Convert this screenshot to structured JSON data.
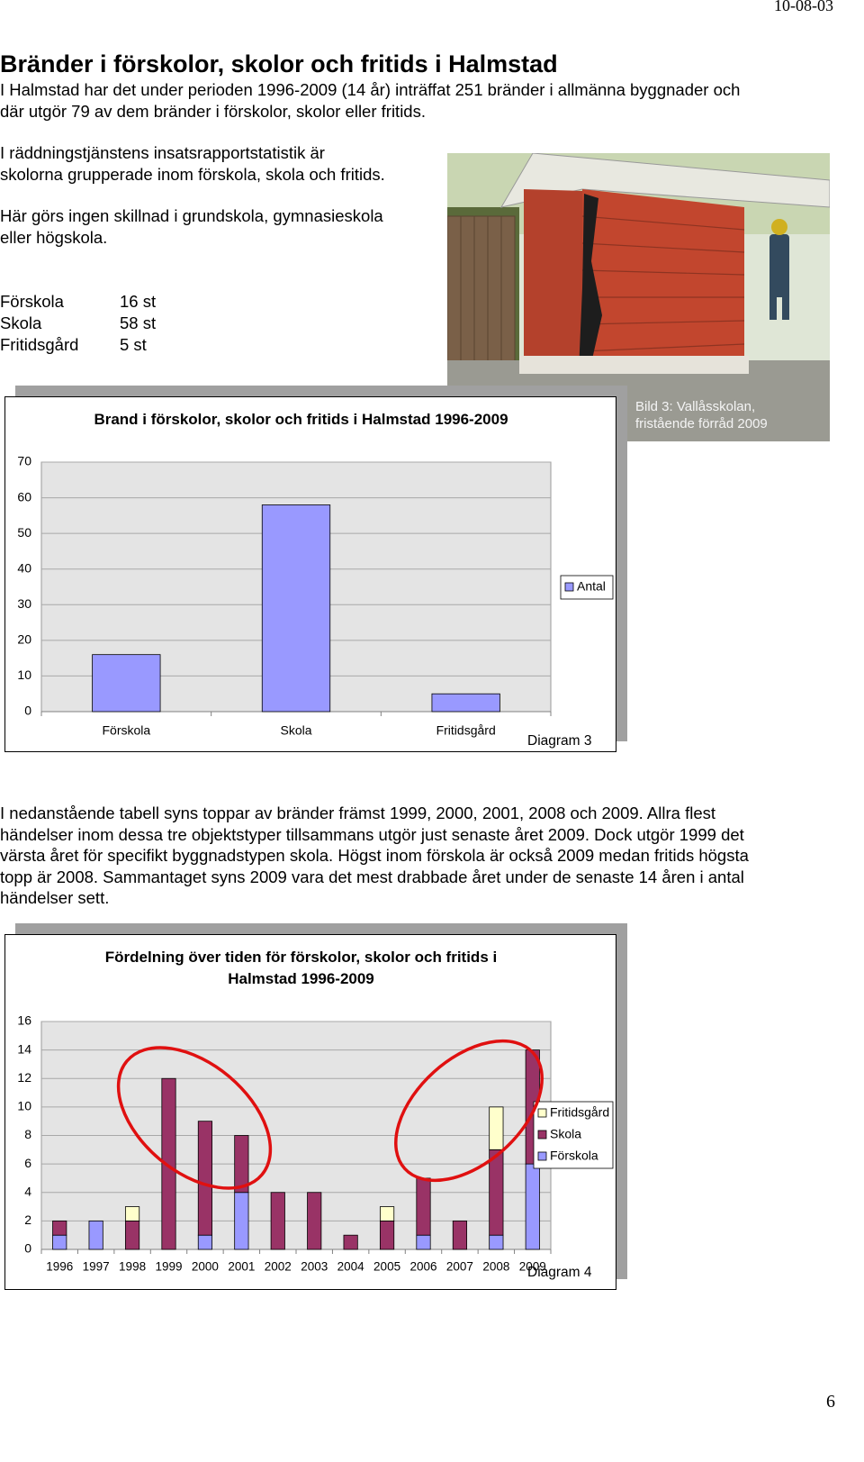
{
  "header": {
    "date": "10-08-03"
  },
  "document": {
    "title": "Bränder i förskolor, skolor och fritids i Halmstad",
    "paragraphs": [
      [
        "I Halmstad har det under perioden 1996-2009 (14 år) inträffat 251 bränder i allmänna byggnader och",
        "där utgör 79 av dem bränder i förskolor, skolor eller fritids."
      ],
      [
        "I räddningstjänstens insatsrapportstatistik är",
        "skolorna grupperade inom förskola, skola och fritids."
      ],
      [
        "Här görs ingen skillnad i grundskola, gymnasieskola",
        "eller högskola."
      ]
    ],
    "stats": [
      {
        "label": "Förskola",
        "value": "16 st"
      },
      {
        "label": "Skola",
        "value": "58 st"
      },
      {
        "label": "Fritidsgård",
        "value": "5 st"
      }
    ],
    "image_caption": "Bild 3: Vallåsskolan, fristående förråd 2009",
    "paragraph_after": [
      "I nedanstående tabell syns toppar av bränder främst 1999, 2000, 2001, 2008 och 2009. Allra flest",
      "händelser inom dessa tre objektstyper tillsammans utgör just senaste året 2009. Dock utgör 1999 det",
      "värsta året för specifikt byggnadstypen skola. Högst inom förskola är också 2009 medan fritids högsta",
      "topp är 2008. Sammantaget syns 2009 vara det mest drabbade året under de senaste 14 åren i antal",
      "händelser sett."
    ]
  },
  "chart_data": [
    {
      "type": "bar",
      "title": "Brand i förskolor, skolor och fritids i Halmstad 1996-2009",
      "categories": [
        "Förskola",
        "Skola",
        "Fritidsgård"
      ],
      "series": [
        {
          "name": "Antal",
          "color": "#9999ff",
          "values": [
            16,
            58,
            5
          ]
        }
      ],
      "ylim": [
        0,
        70
      ],
      "yticks": [
        0,
        10,
        20,
        30,
        40,
        50,
        60,
        70
      ],
      "grid": true,
      "legend": "right",
      "caption": "Diagram 3"
    },
    {
      "type": "stacked_bar",
      "title": "Fördelning över tiden för förskolor, skolor och fritids i Halmstad 1996-2009",
      "categories": [
        "1996",
        "1997",
        "1998",
        "1999",
        "2000",
        "2001",
        "2002",
        "2003",
        "2004",
        "2005",
        "2006",
        "2007",
        "2008",
        "2009"
      ],
      "series": [
        {
          "name": "Förskola",
          "color": "#9999ff",
          "values": [
            1,
            2,
            0,
            0,
            1,
            4,
            0,
            0,
            0,
            0,
            1,
            0,
            1,
            6
          ]
        },
        {
          "name": "Skola",
          "color": "#993366",
          "values": [
            1,
            0,
            2,
            12,
            8,
            4,
            4,
            4,
            1,
            2,
            4,
            2,
            6,
            8
          ]
        },
        {
          "name": "Fritidsgård",
          "color": "#ffffcc",
          "values": [
            0,
            0,
            1,
            0,
            0,
            0,
            0,
            0,
            0,
            1,
            0,
            0,
            3,
            0
          ]
        }
      ],
      "ylim": [
        0,
        16
      ],
      "yticks": [
        0,
        2,
        4,
        6,
        8,
        10,
        12,
        14,
        16
      ],
      "grid": true,
      "legend": "right",
      "caption": "Diagram 4"
    }
  ],
  "footer": {
    "page": "6"
  }
}
